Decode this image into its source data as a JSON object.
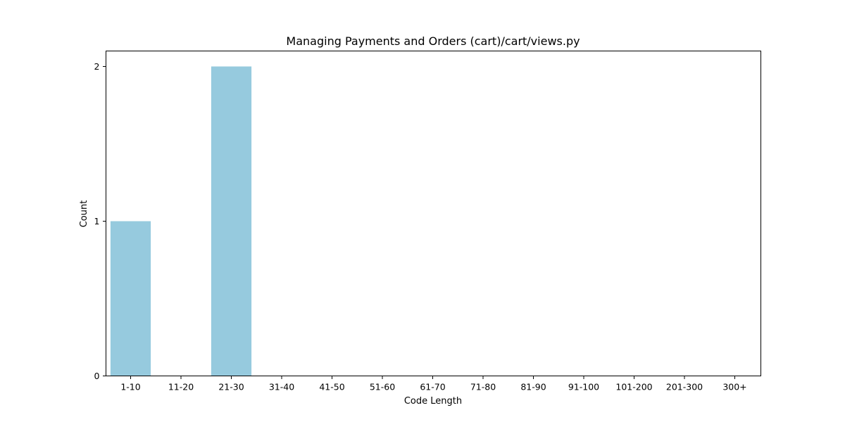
{
  "chart_data": {
    "type": "bar",
    "title": "Managing Payments and Orders (cart)/cart/views.py",
    "xlabel": "Code Length",
    "ylabel": "Count",
    "categories": [
      "1-10",
      "11-20",
      "21-30",
      "31-40",
      "41-50",
      "51-60",
      "61-70",
      "71-80",
      "81-90",
      "91-100",
      "101-200",
      "201-300",
      "300+"
    ],
    "values": [
      1,
      0,
      2,
      0,
      0,
      0,
      0,
      0,
      0,
      0,
      0,
      0,
      0
    ],
    "yticks": [
      0,
      1,
      2
    ],
    "ylim": [
      0,
      2.1
    ],
    "grid": false,
    "bar_color": "#96cade"
  }
}
